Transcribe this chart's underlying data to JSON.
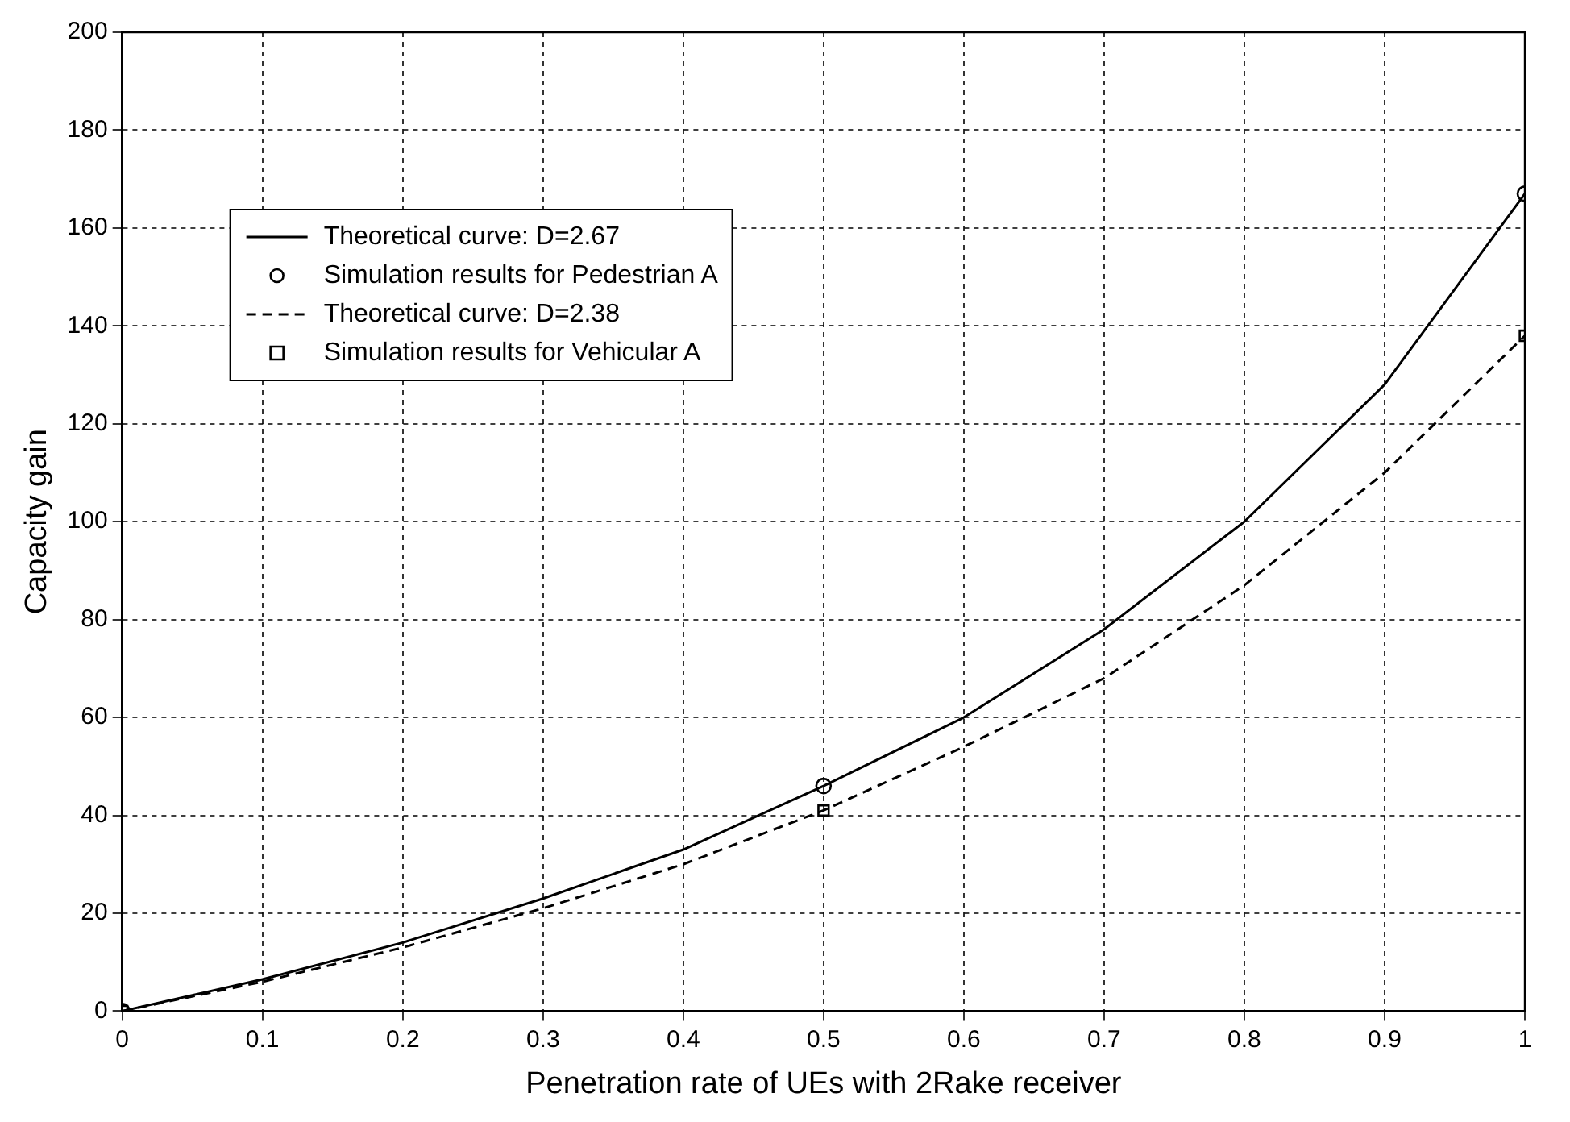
{
  "chart_data": {
    "type": "line",
    "xlabel": "Penetration rate of UEs with 2Rake receiver",
    "ylabel": "Capacity gain",
    "xlim": [
      0,
      1
    ],
    "xticks": [
      0,
      0.1,
      0.2,
      0.3,
      0.4,
      0.5,
      0.6,
      0.7,
      0.8,
      0.9,
      1
    ],
    "ylim": [
      0,
      200
    ],
    "yticks": [
      0,
      20,
      40,
      60,
      80,
      100,
      120,
      140,
      160,
      180,
      200
    ],
    "grid": true,
    "legend": "top left",
    "series": [
      {
        "name": "Theoretical curve: D=2.67",
        "type": "line",
        "color": "#000000",
        "marker": "none",
        "line_style": "solid",
        "x": [
          0,
          0.1,
          0.2,
          0.3,
          0.4,
          0.5,
          0.6,
          0.7,
          0.8,
          0.9,
          1
        ],
        "values": [
          0,
          6.5,
          14,
          23,
          33,
          46,
          60,
          78,
          100,
          128,
          167
        ]
      },
      {
        "name": "Simulation results for Pedestrian A",
        "type": "scatter",
        "color": "#000000",
        "marker": "circle",
        "x": [
          0,
          0.5,
          1
        ],
        "values": [
          0,
          46,
          167
        ]
      },
      {
        "name": "Theoretical curve: D=2.38",
        "type": "line",
        "color": "#000000",
        "marker": "none",
        "line_style": "dashed",
        "x": [
          0,
          0.1,
          0.2,
          0.3,
          0.4,
          0.5,
          0.6,
          0.7,
          0.8,
          0.9,
          1
        ],
        "values": [
          0,
          6,
          13,
          21,
          30,
          41,
          54,
          68,
          87,
          110,
          138
        ]
      },
      {
        "name": "Simulation results for Vehicular A",
        "type": "scatter",
        "color": "#000000",
        "marker": "square",
        "x": [
          0,
          0.5,
          1
        ],
        "values": [
          0,
          41,
          138
        ]
      }
    ]
  }
}
